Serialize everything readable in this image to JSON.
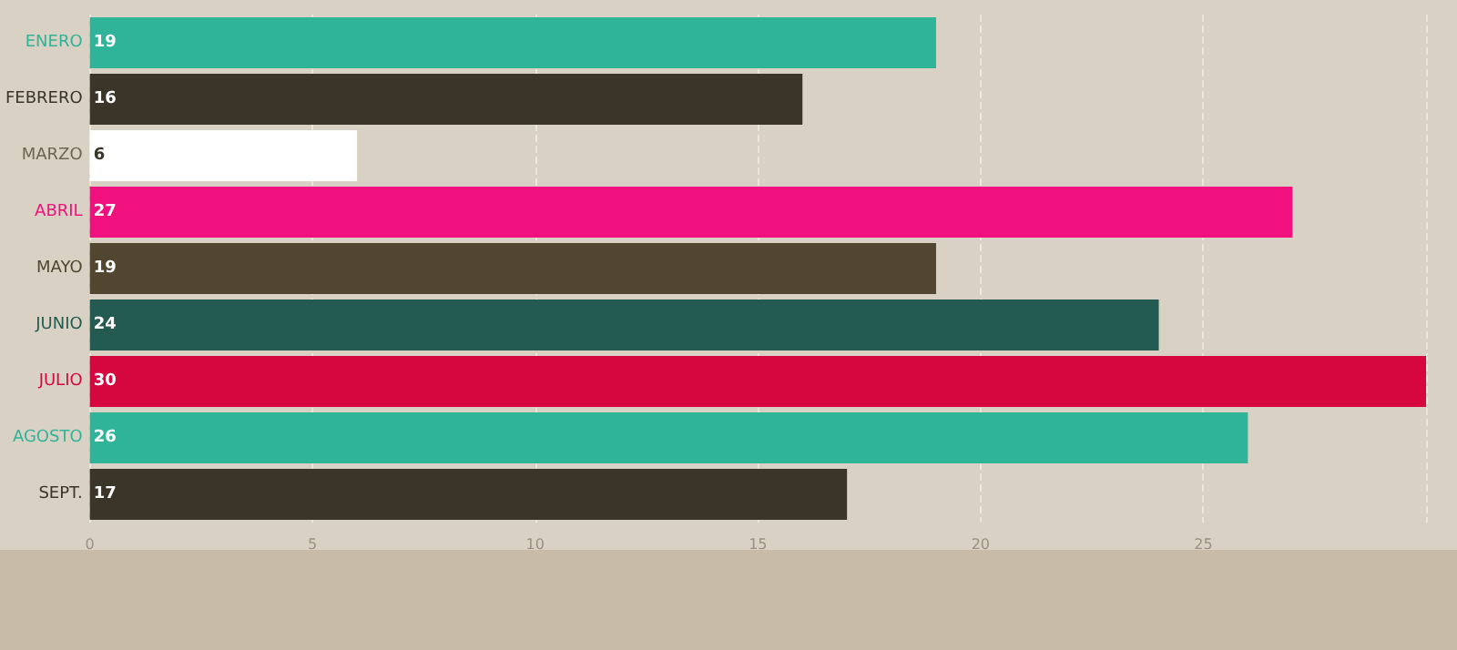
{
  "chart_data": {
    "type": "bar",
    "orientation": "horizontal",
    "categories": [
      "ENERO",
      "FEBRERO",
      "MARZO",
      "ABRIL",
      "MAYO",
      "JUNIO",
      "JULIO",
      "AGOSTO",
      "SEPT."
    ],
    "values": [
      19,
      16,
      6,
      27,
      19,
      24,
      30,
      26,
      17
    ],
    "colors": [
      "#2fb49a",
      "#3b3428",
      "#ffffff",
      "#f0117f",
      "#524631",
      "#235b52",
      "#d6073e",
      "#2fb49a",
      "#3b3428"
    ],
    "data_labels": true,
    "xlim": [
      0,
      30
    ],
    "xticks": [
      0,
      5,
      10,
      15,
      20,
      25
    ],
    "grid": "x"
  }
}
